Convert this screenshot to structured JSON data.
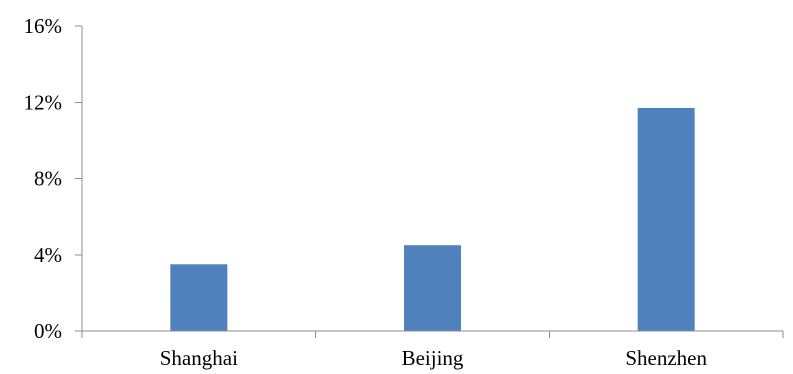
{
  "chart_data": {
    "type": "bar",
    "categories": [
      "Shanghai",
      "Beijing",
      "Shenzhen"
    ],
    "values": [
      3.5,
      4.5,
      11.7
    ],
    "ylim": [
      0,
      16
    ],
    "yticks": [
      0,
      4,
      8,
      12,
      16
    ],
    "ytick_labels": [
      "0%",
      "4%",
      "8%",
      "12%",
      "16%"
    ],
    "title": "",
    "xlabel": "",
    "ylabel": "",
    "grid": false,
    "legend": "none",
    "bar_color": "#4f81bd"
  }
}
